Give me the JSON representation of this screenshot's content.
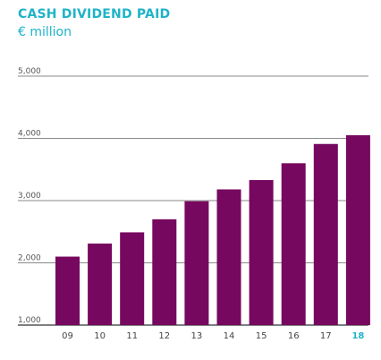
{
  "chart_data": {
    "type": "bar",
    "title": "CASH DIVIDEND PAID",
    "subtitle": "€ million",
    "categories": [
      "09",
      "10",
      "11",
      "12",
      "13",
      "14",
      "15",
      "16",
      "17",
      "18"
    ],
    "values": [
      2100,
      2310,
      2490,
      2700,
      2990,
      3180,
      3330,
      3600,
      3910,
      4050
    ],
    "yticks": [
      1000,
      2000,
      3000,
      4000,
      5000
    ],
    "ytick_labels": [
      "1,000",
      "2,000",
      "3,000",
      "4,000",
      "5,000"
    ],
    "ylim": [
      1000,
      5000
    ],
    "highlight_category": "18",
    "grid": true,
    "colors": {
      "bar": "#76085f",
      "accent": "#1fb3c8",
      "grid": "#8a8a8a"
    }
  }
}
